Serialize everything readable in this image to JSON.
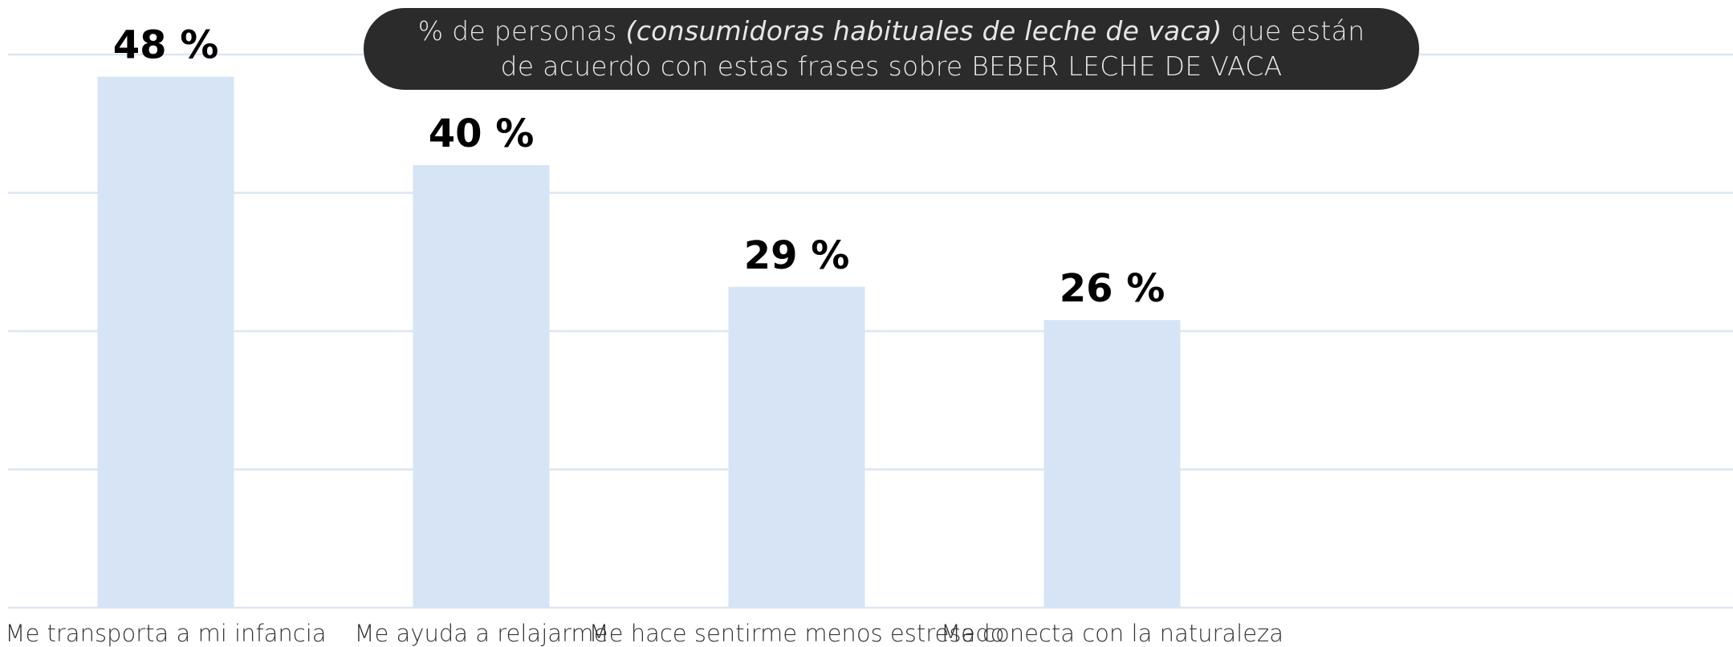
{
  "chart_data": {
    "type": "bar",
    "title": [
      "% de personas ",
      "(consumidoras habituales de leche de vaca)",
      " que están de acuerdo con estas frases sobre BEBER LECHE DE VACA"
    ],
    "categories": [
      "Me transporta a mi infancia",
      "Me ayuda a relajarme",
      "Me hace sentirme menos estresado",
      "Me conecta con la naturaleza"
    ],
    "values": [
      48,
      40,
      29,
      26
    ],
    "value_labels": [
      "48 %",
      "40 %",
      "29 %",
      "26 %"
    ],
    "color": "#d6e4f5",
    "ylim": [
      0,
      50
    ],
    "yticks": [
      0,
      12.5,
      25,
      37.5,
      50
    ],
    "grid": true
  }
}
